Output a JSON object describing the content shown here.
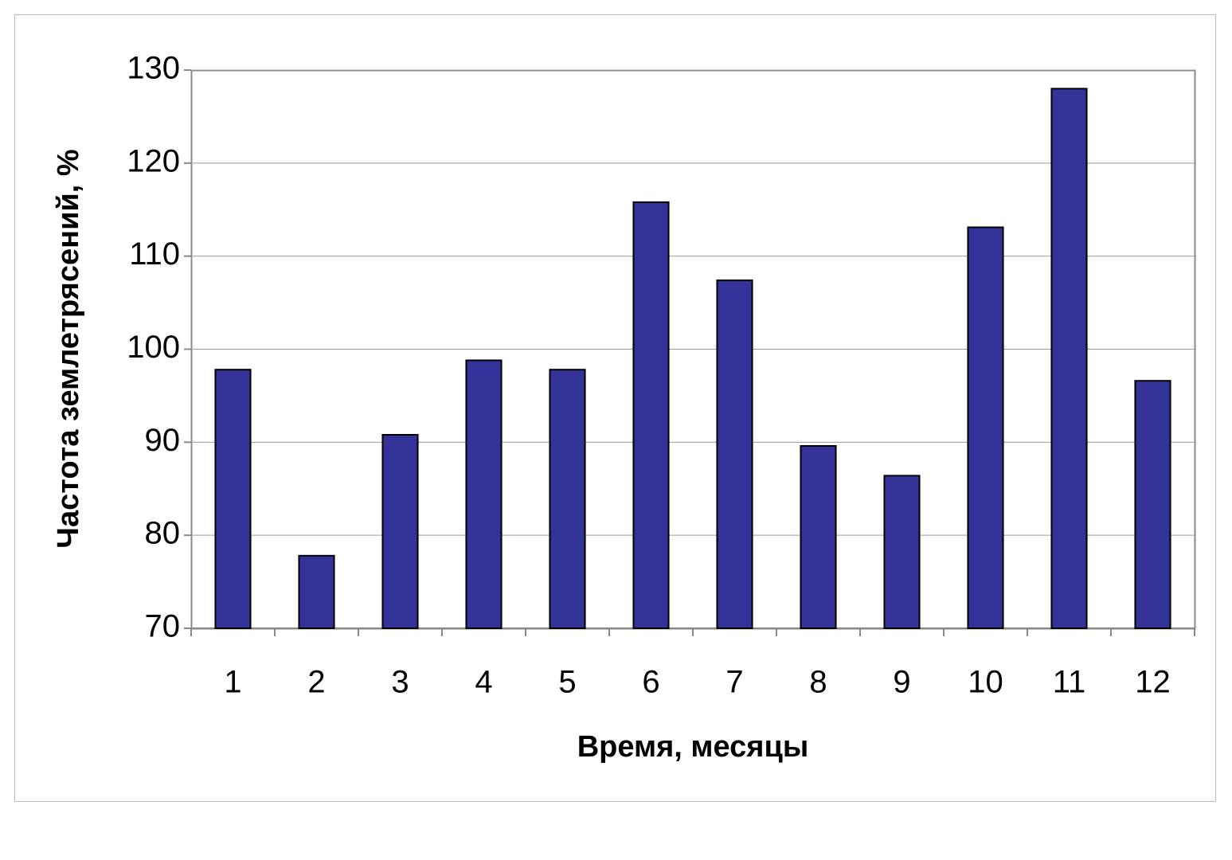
{
  "chart_data": {
    "type": "bar",
    "x_label": "Время, месяцы",
    "y_label": "Частота землетрясений, %",
    "categories": [
      "1",
      "2",
      "3",
      "4",
      "5",
      "6",
      "7",
      "8",
      "9",
      "10",
      "11",
      "12"
    ],
    "values": [
      97.8,
      77.8,
      90.8,
      98.8,
      97.8,
      115.8,
      107.4,
      89.6,
      86.4,
      113.1,
      128.0,
      96.6
    ],
    "color": "#333399",
    "ylim": [
      70,
      130
    ],
    "yticks": [
      70,
      80,
      90,
      100,
      110,
      120,
      130
    ],
    "grid": true
  }
}
